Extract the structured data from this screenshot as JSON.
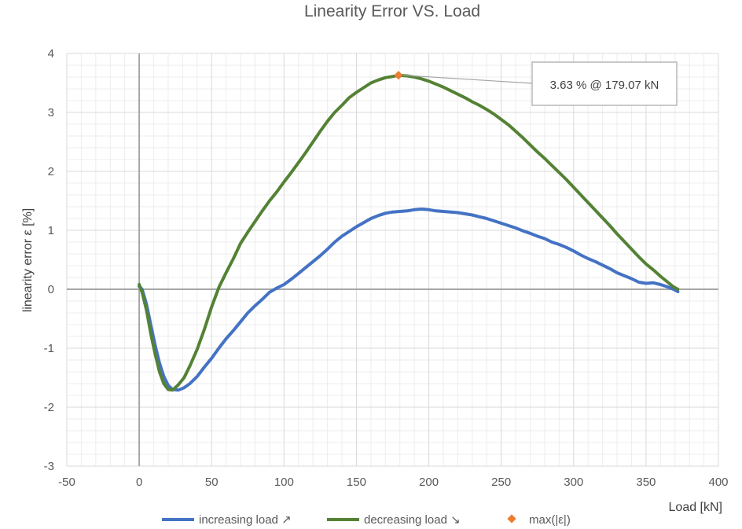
{
  "chart_data": {
    "type": "line",
    "title": "Linearity Error VS. Load",
    "xlabel": "Load [kN]",
    "ylabel": "linearity error ε [%]",
    "xlim": [
      -50,
      400
    ],
    "ylim": [
      -3,
      4
    ],
    "x_ticks": [
      -50,
      0,
      50,
      100,
      150,
      200,
      250,
      300,
      350,
      400
    ],
    "y_ticks": [
      -3,
      -2,
      -1,
      0,
      1,
      2,
      3,
      4
    ],
    "grid": true,
    "minor_grid": true,
    "legend_position": "bottom",
    "series": [
      {
        "name": "increasing load ↗",
        "color": "#4472C4",
        "points": [
          [
            0,
            0.05
          ],
          [
            2,
            0.0
          ],
          [
            5,
            -0.25
          ],
          [
            8,
            -0.6
          ],
          [
            11,
            -0.95
          ],
          [
            14,
            -1.25
          ],
          [
            17,
            -1.48
          ],
          [
            20,
            -1.63
          ],
          [
            23,
            -1.7
          ],
          [
            27,
            -1.71
          ],
          [
            31,
            -1.67
          ],
          [
            35,
            -1.6
          ],
          [
            40,
            -1.48
          ],
          [
            45,
            -1.32
          ],
          [
            50,
            -1.17
          ],
          [
            55,
            -1.0
          ],
          [
            60,
            -0.84
          ],
          [
            65,
            -0.7
          ],
          [
            70,
            -0.55
          ],
          [
            75,
            -0.4
          ],
          [
            80,
            -0.28
          ],
          [
            85,
            -0.17
          ],
          [
            90,
            -0.05
          ],
          [
            95,
            0.02
          ],
          [
            100,
            0.08
          ],
          [
            105,
            0.17
          ],
          [
            110,
            0.27
          ],
          [
            115,
            0.37
          ],
          [
            120,
            0.47
          ],
          [
            125,
            0.57
          ],
          [
            130,
            0.68
          ],
          [
            135,
            0.8
          ],
          [
            140,
            0.9
          ],
          [
            145,
            0.98
          ],
          [
            150,
            1.06
          ],
          [
            155,
            1.13
          ],
          [
            160,
            1.2
          ],
          [
            165,
            1.25
          ],
          [
            170,
            1.29
          ],
          [
            175,
            1.31
          ],
          [
            180,
            1.32
          ],
          [
            185,
            1.33
          ],
          [
            190,
            1.35
          ],
          [
            195,
            1.36
          ],
          [
            200,
            1.35
          ],
          [
            205,
            1.33
          ],
          [
            210,
            1.32
          ],
          [
            215,
            1.31
          ],
          [
            220,
            1.3
          ],
          [
            225,
            1.28
          ],
          [
            230,
            1.26
          ],
          [
            235,
            1.23
          ],
          [
            240,
            1.2
          ],
          [
            245,
            1.16
          ],
          [
            250,
            1.12
          ],
          [
            255,
            1.08
          ],
          [
            260,
            1.04
          ],
          [
            265,
            0.99
          ],
          [
            270,
            0.95
          ],
          [
            275,
            0.9
          ],
          [
            280,
            0.86
          ],
          [
            285,
            0.8
          ],
          [
            290,
            0.76
          ],
          [
            295,
            0.71
          ],
          [
            300,
            0.65
          ],
          [
            305,
            0.58
          ],
          [
            310,
            0.52
          ],
          [
            315,
            0.47
          ],
          [
            320,
            0.41
          ],
          [
            325,
            0.35
          ],
          [
            330,
            0.28
          ],
          [
            335,
            0.23
          ],
          [
            340,
            0.18
          ],
          [
            345,
            0.12
          ],
          [
            350,
            0.1
          ],
          [
            355,
            0.11
          ],
          [
            360,
            0.08
          ],
          [
            365,
            0.04
          ],
          [
            369,
            0.0
          ],
          [
            372,
            -0.04
          ]
        ]
      },
      {
        "name": "decreasing load ↘",
        "color": "#548235",
        "points": [
          [
            0,
            0.08
          ],
          [
            2,
            -0.05
          ],
          [
            5,
            -0.35
          ],
          [
            8,
            -0.75
          ],
          [
            11,
            -1.1
          ],
          [
            14,
            -1.4
          ],
          [
            17,
            -1.6
          ],
          [
            20,
            -1.7
          ],
          [
            23,
            -1.71
          ],
          [
            27,
            -1.62
          ],
          [
            31,
            -1.5
          ],
          [
            35,
            -1.3
          ],
          [
            40,
            -1.02
          ],
          [
            45,
            -0.68
          ],
          [
            50,
            -0.3
          ],
          [
            55,
            0.03
          ],
          [
            60,
            0.28
          ],
          [
            65,
            0.52
          ],
          [
            70,
            0.78
          ],
          [
            75,
            0.97
          ],
          [
            80,
            1.15
          ],
          [
            85,
            1.33
          ],
          [
            90,
            1.5
          ],
          [
            95,
            1.65
          ],
          [
            100,
            1.82
          ],
          [
            105,
            1.98
          ],
          [
            110,
            2.15
          ],
          [
            115,
            2.32
          ],
          [
            120,
            2.5
          ],
          [
            125,
            2.68
          ],
          [
            130,
            2.85
          ],
          [
            135,
            3.0
          ],
          [
            140,
            3.12
          ],
          [
            145,
            3.25
          ],
          [
            150,
            3.34
          ],
          [
            155,
            3.42
          ],
          [
            160,
            3.5
          ],
          [
            165,
            3.55
          ],
          [
            170,
            3.59
          ],
          [
            175,
            3.61
          ],
          [
            179,
            3.63
          ],
          [
            185,
            3.62
          ],
          [
            190,
            3.6
          ],
          [
            195,
            3.57
          ],
          [
            200,
            3.53
          ],
          [
            205,
            3.48
          ],
          [
            210,
            3.43
          ],
          [
            215,
            3.37
          ],
          [
            220,
            3.31
          ],
          [
            225,
            3.25
          ],
          [
            230,
            3.18
          ],
          [
            235,
            3.12
          ],
          [
            240,
            3.05
          ],
          [
            245,
            2.97
          ],
          [
            250,
            2.88
          ],
          [
            255,
            2.79
          ],
          [
            260,
            2.68
          ],
          [
            265,
            2.57
          ],
          [
            270,
            2.45
          ],
          [
            275,
            2.33
          ],
          [
            280,
            2.22
          ],
          [
            285,
            2.1
          ],
          [
            290,
            1.98
          ],
          [
            295,
            1.86
          ],
          [
            300,
            1.73
          ],
          [
            305,
            1.6
          ],
          [
            310,
            1.47
          ],
          [
            315,
            1.34
          ],
          [
            320,
            1.21
          ],
          [
            325,
            1.08
          ],
          [
            330,
            0.94
          ],
          [
            335,
            0.81
          ],
          [
            340,
            0.68
          ],
          [
            345,
            0.55
          ],
          [
            350,
            0.43
          ],
          [
            355,
            0.33
          ],
          [
            360,
            0.22
          ],
          [
            365,
            0.12
          ],
          [
            369,
            0.04
          ],
          [
            372,
            0.0
          ]
        ]
      },
      {
        "name": "max(|ε|)",
        "color": "#ED7D31",
        "marker": "diamond",
        "points": [
          [
            179.07,
            3.63
          ]
        ]
      }
    ],
    "annotation": {
      "text": "3.63 % @ 179.07 kN",
      "x": 179.07,
      "y": 3.63
    }
  }
}
